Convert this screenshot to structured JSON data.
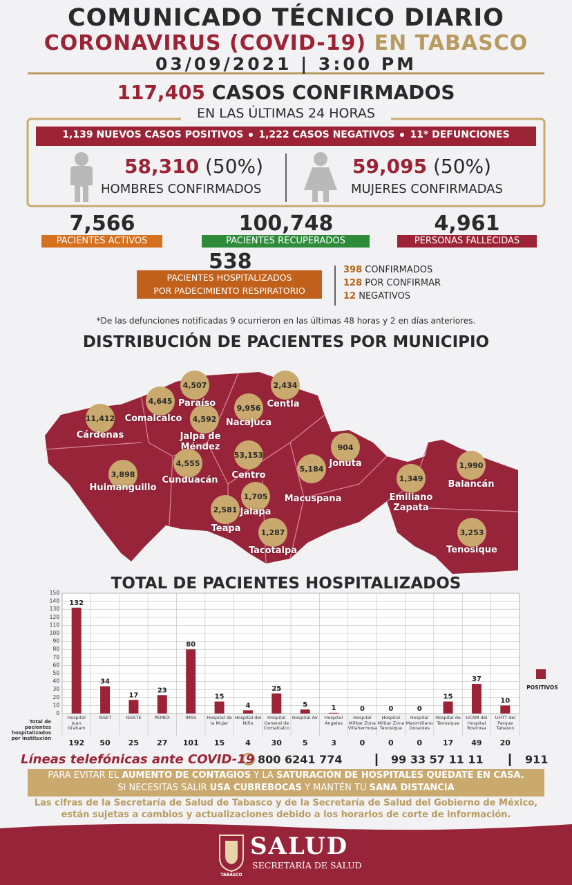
{
  "header": {
    "title": "COMUNICADO TÉCNICO DIARIO",
    "subtitle_red": "CORONAVIRUS (COVID-19)",
    "subtitle_gold": "EN TABASCO",
    "datetime": "03/09/2021 | 3:00 PM"
  },
  "confirmed": {
    "total": "117,405",
    "label": "CASOS CONFIRMADOS",
    "period": "EN LAS ÚLTIMAS 24 HORAS",
    "daily": [
      "1,139 NUEVOS CASOS POSITIVOS",
      "1,222 CASOS NEGATIVOS",
      "11* DEFUNCIONES"
    ],
    "men": {
      "value": "58,310",
      "percent": "(50%)",
      "label": "HOMBRES CONFIRMADOS"
    },
    "women": {
      "value": "59,095",
      "percent": "(50%)",
      "label": "MUJERES CONFIRMADAS"
    }
  },
  "stats": [
    {
      "value": "7,566",
      "label": "PACIENTES ACTIVOS"
    },
    {
      "value": "100,748",
      "label": "PACIENTES RECUPERADOS"
    },
    {
      "value": "4,961",
      "label": "PERSONAS FALLECIDAS"
    }
  ],
  "hospitalized": {
    "value": "538",
    "label": [
      "PACIENTES HOSPITALIZADOS",
      "POR PADECIMIENTO RESPIRATORIO"
    ],
    "breakdown": [
      {
        "value": "398",
        "label": "CONFIRMADOS"
      },
      {
        "value": "128",
        "label": "POR CONFIRMAR"
      },
      {
        "value": "12",
        "label": "NEGATIVOS"
      }
    ]
  },
  "note": "*De las defunciones notificadas 9 ocurrieron en las últimas 48 horas y 2 en días anteriores.",
  "map": {
    "title": "DISTRIBUCIÓN DE PACIENTES POR MUNICIPIO",
    "municipalities": [
      {
        "name": "Cárdenas",
        "value": "11,412"
      },
      {
        "name": "Comalcalco",
        "value": "4,645"
      },
      {
        "name": "Paraíso",
        "value": "4,507"
      },
      {
        "name": "Jalpa de Méndez",
        "value": "4,592"
      },
      {
        "name": "Centla",
        "value": "2,434"
      },
      {
        "name": "Nacajuca",
        "value": "9,956"
      },
      {
        "name": "Cunduacán",
        "value": "4,555"
      },
      {
        "name": "Centro",
        "value": "53,153"
      },
      {
        "name": "Huimanguillo",
        "value": "3,898"
      },
      {
        "name": "Jonuta",
        "value": "904"
      },
      {
        "name": "Macuspana",
        "value": "5,184"
      },
      {
        "name": "Jalapa",
        "value": "1,705"
      },
      {
        "name": "Teapa",
        "value": "2,581"
      },
      {
        "name": "Tacotalpa",
        "value": "1,287"
      },
      {
        "name": "Emiliano Zapata",
        "value": "1,349"
      },
      {
        "name": "Balancán",
        "value": "1,990"
      },
      {
        "name": "Tenosique",
        "value": "3,253"
      }
    ]
  },
  "chart_data": {
    "type": "bar",
    "title": "TOTAL DE PACIENTES HOSPITALIZADOS",
    "categories": [
      "Hospital Juan Graham",
      "ISSET",
      "ISSSTE",
      "PEMEX",
      "IMSS",
      "Hospital de la Mujer",
      "Hospital del Niño",
      "Hospital General de Comalcalco",
      "Hospital Air",
      "Hospital Ángeles",
      "Hospital Militar Zona Villahermosa",
      "Hospital Militar Zona Tenosique",
      "Hospital Maximiliano Dorantes",
      "Hospital de Tenosique",
      "UCAM del Hospital Rovirosa",
      "UHTT del Parque Tabasco"
    ],
    "series": [
      {
        "name": "POSITIVOS",
        "color": "#9b2335",
        "values": [
          132,
          34,
          17,
          23,
          80,
          15,
          4,
          25,
          5,
          1,
          0,
          0,
          0,
          15,
          37,
          10
        ]
      }
    ],
    "totals_label": "Total de pacientes hospitalizados por institución",
    "totals": [
      192,
      50,
      25,
      27,
      101,
      15,
      4,
      30,
      5,
      3,
      0,
      0,
      0,
      17,
      49,
      20
    ],
    "ylim": [
      0,
      150
    ],
    "yticks": [
      0,
      10,
      20,
      30,
      40,
      50,
      60,
      70,
      80,
      90,
      100,
      110,
      120,
      130,
      140,
      150
    ],
    "grid": true,
    "legend": "right"
  },
  "phones": {
    "label": "Líneas telefónicas ante COVID-19",
    "numbers": [
      "800 6241 774",
      "99 33 57 11 11",
      "911"
    ]
  },
  "advice": [
    [
      "PARA EVITAR EL ",
      "AUMENTO DE CONTAGIOS",
      " Y LA ",
      "SATURACIÓN DE HOSPITALES QUÉDATE EN CASA."
    ],
    [
      "SI NECESITAS SALIR ",
      "USA CUBREBOCAS",
      " Y MANTÉN TU ",
      "SANA DISTANCIA"
    ]
  ],
  "disclaimer": "Las cifras de la Secretaría de Salud de Tabasco y de la Secretaría de Salud del Gobierno de México, están sujetas a cambios y actualizaciones debido a los horarios de corte de información.",
  "footer": {
    "brand": "SALUD",
    "subtitle": "SECRETARÍA DE SALUD",
    "logo_text": "TABASCO"
  }
}
